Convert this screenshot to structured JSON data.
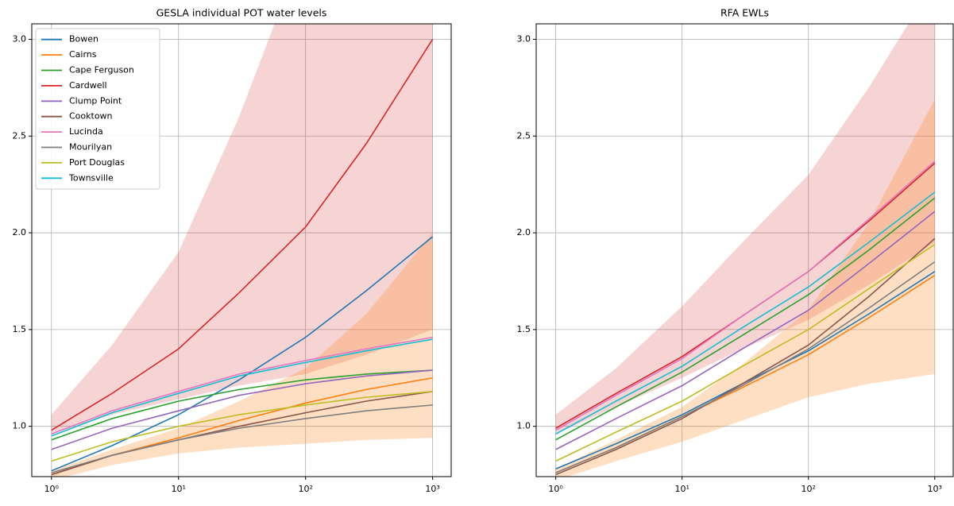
{
  "chart_data": [
    {
      "type": "line",
      "title": "GESLA individual POT water levels",
      "log_x": true,
      "grid": true,
      "legend": "upper left",
      "x": [
        1,
        3,
        10,
        30,
        100,
        300,
        1000
      ],
      "xlim": [
        0.7,
        1400
      ],
      "xticks": [
        {
          "value": 1,
          "label": "10⁰"
        },
        {
          "value": 10,
          "label": "10¹"
        },
        {
          "value": 100,
          "label": "10²"
        },
        {
          "value": 1000,
          "label": "10³"
        }
      ],
      "ylim": [
        0.74,
        3.08
      ],
      "yticks": [
        {
          "value": 1,
          "label": "1.0"
        },
        {
          "value": 1.5,
          "label": "1.5"
        },
        {
          "value": 2,
          "label": "2.0"
        },
        {
          "value": 2.5,
          "label": "2.5"
        },
        {
          "value": 3,
          "label": "3.0"
        }
      ],
      "bands": [
        {
          "color": "#d62728",
          "alpha": 0.2,
          "lower": [
            0.96,
            1.06,
            1.14,
            1.21,
            1.27,
            1.37,
            1.5
          ],
          "upper": [
            1.06,
            1.42,
            1.9,
            2.6,
            3.5,
            4.6,
            6.0
          ]
        },
        {
          "color": "#ff7f0e",
          "alpha": 0.25,
          "lower": [
            0.72,
            0.8,
            0.86,
            0.89,
            0.91,
            0.93,
            0.94
          ],
          "upper": [
            0.77,
            0.88,
            0.99,
            1.13,
            1.3,
            1.58,
            2.0
          ]
        }
      ],
      "series": [
        {
          "name": "Bowen",
          "color": "#1f77b4",
          "values": [
            0.77,
            0.9,
            1.06,
            1.24,
            1.46,
            1.7,
            1.98
          ]
        },
        {
          "name": "Cairns",
          "color": "#ff7f0e",
          "values": [
            0.75,
            0.85,
            0.94,
            1.03,
            1.12,
            1.19,
            1.25
          ]
        },
        {
          "name": "Cape Ferguson",
          "color": "#2ca02c",
          "values": [
            0.93,
            1.04,
            1.13,
            1.19,
            1.24,
            1.27,
            1.29
          ]
        },
        {
          "name": "Cardwell",
          "color": "#d62728",
          "values": [
            0.98,
            1.17,
            1.4,
            1.69,
            2.03,
            2.46,
            3.0
          ]
        },
        {
          "name": "Clump Point",
          "color": "#9467bd",
          "values": [
            0.88,
            0.99,
            1.08,
            1.16,
            1.22,
            1.26,
            1.29
          ]
        },
        {
          "name": "Cooktown",
          "color": "#8c564b",
          "values": [
            0.75,
            0.85,
            0.93,
            1.0,
            1.07,
            1.13,
            1.18
          ]
        },
        {
          "name": "Lucinda",
          "color": "#e377c2",
          "values": [
            0.96,
            1.08,
            1.18,
            1.27,
            1.34,
            1.4,
            1.46
          ]
        },
        {
          "name": "Mourilyan",
          "color": "#7f7f7f",
          "values": [
            0.76,
            0.85,
            0.93,
            0.99,
            1.04,
            1.08,
            1.11
          ]
        },
        {
          "name": "Port Douglas",
          "color": "#bcbd22",
          "values": [
            0.82,
            0.92,
            1.0,
            1.06,
            1.11,
            1.15,
            1.18
          ]
        },
        {
          "name": "Townsville",
          "color": "#17becf",
          "values": [
            0.95,
            1.07,
            1.17,
            1.26,
            1.33,
            1.39,
            1.45
          ]
        }
      ]
    },
    {
      "type": "line",
      "title": "RFA EWLs",
      "log_x": true,
      "grid": true,
      "x": [
        1,
        3,
        10,
        30,
        100,
        300,
        1000
      ],
      "xlim": [
        0.7,
        1400
      ],
      "xticks": [
        {
          "value": 1,
          "label": "10⁰"
        },
        {
          "value": 10,
          "label": "10¹"
        },
        {
          "value": 100,
          "label": "10²"
        },
        {
          "value": 1000,
          "label": "10³"
        }
      ],
      "ylim": [
        0.74,
        3.08
      ],
      "yticks": [
        {
          "value": 1,
          "label": "1.0"
        },
        {
          "value": 1.5,
          "label": "1.5"
        },
        {
          "value": 2,
          "label": "2.0"
        },
        {
          "value": 2.5,
          "label": "2.5"
        },
        {
          "value": 3,
          "label": "3.0"
        }
      ],
      "bands": [
        {
          "color": "#d62728",
          "alpha": 0.2,
          "lower": [
            0.96,
            1.1,
            1.25,
            1.4,
            1.55,
            1.73,
            1.95
          ],
          "upper": [
            1.06,
            1.3,
            1.62,
            1.95,
            2.3,
            2.75,
            3.3
          ]
        },
        {
          "color": "#ff7f0e",
          "alpha": 0.25,
          "lower": [
            0.72,
            0.82,
            0.92,
            1.03,
            1.15,
            1.22,
            1.27
          ],
          "upper": [
            0.78,
            0.93,
            1.1,
            1.32,
            1.6,
            2.05,
            2.69
          ]
        }
      ],
      "series": [
        {
          "name": "Bowen",
          "color": "#1f77b4",
          "values": [
            0.78,
            0.91,
            1.06,
            1.22,
            1.39,
            1.58,
            1.8
          ]
        },
        {
          "name": "Cairns",
          "color": "#ff7f0e",
          "values": [
            0.76,
            0.89,
            1.05,
            1.2,
            1.37,
            1.56,
            1.78
          ]
        },
        {
          "name": "Cape Ferguson",
          "color": "#2ca02c",
          "values": [
            0.93,
            1.1,
            1.28,
            1.47,
            1.68,
            1.91,
            2.18
          ]
        },
        {
          "name": "Cardwell",
          "color": "#d62728",
          "values": [
            0.99,
            1.17,
            1.36,
            1.57,
            1.8,
            2.06,
            2.36
          ]
        },
        {
          "name": "Clump Point",
          "color": "#9467bd",
          "values": [
            0.88,
            1.04,
            1.21,
            1.4,
            1.6,
            1.84,
            2.11
          ]
        },
        {
          "name": "Cooktown",
          "color": "#8c564b",
          "values": [
            0.75,
            0.88,
            1.04,
            1.22,
            1.42,
            1.67,
            1.97
          ]
        },
        {
          "name": "Lucinda",
          "color": "#e377c2",
          "values": [
            0.98,
            1.16,
            1.35,
            1.57,
            1.8,
            2.07,
            2.37
          ]
        },
        {
          "name": "Mourilyan",
          "color": "#7f7f7f",
          "values": [
            0.76,
            0.89,
            1.05,
            1.21,
            1.4,
            1.61,
            1.85
          ]
        },
        {
          "name": "Port Douglas",
          "color": "#bcbd22",
          "values": [
            0.82,
            0.97,
            1.13,
            1.31,
            1.5,
            1.71,
            1.94
          ]
        },
        {
          "name": "Townsville",
          "color": "#17becf",
          "values": [
            0.96,
            1.13,
            1.31,
            1.51,
            1.72,
            1.95,
            2.21
          ]
        }
      ]
    }
  ]
}
